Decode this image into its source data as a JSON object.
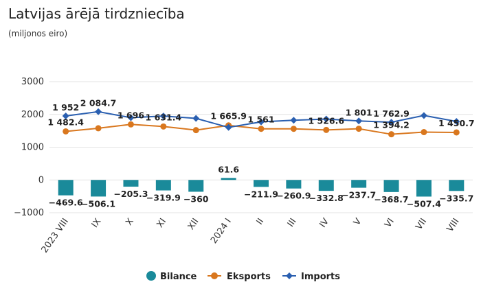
{
  "title": "Latvijas ārējā tirdzniecība",
  "subtitle": "(miljonos eiro)",
  "chart_data": {
    "type": "bar+line",
    "categories": [
      "2023 VIII",
      "IX",
      "X",
      "XI",
      "XII",
      "2024 I",
      "II",
      "III",
      "IV",
      "V",
      "VI",
      "VII",
      "VIII"
    ],
    "ylim": [
      -1000,
      3000
    ],
    "yticks": [
      "3000",
      "2000",
      "1000",
      "0",
      "−1000"
    ],
    "ytick_values": [
      3000,
      2000,
      1000,
      0,
      -1000
    ],
    "grid": true,
    "legend_position": "bottom",
    "series": [
      {
        "name": "Bilance",
        "type": "bar",
        "color": "#1a8a9a",
        "values": [
          -469.6,
          -506.1,
          -205.3,
          -319.9,
          -360,
          61.6,
          -211.9,
          -260.9,
          -332.8,
          -237.7,
          -368.7,
          -507.4,
          -335.7
        ],
        "labels": [
          "−469.6",
          "−506.1",
          "−205.3",
          "−319.9",
          "−360",
          "61.6",
          "−211.9",
          "−260.9",
          "−332.8",
          "−237.7",
          "−368.7",
          "−507.4",
          "−335.7"
        ]
      },
      {
        "name": "Eksports",
        "type": "line",
        "color": "#d9771e",
        "values": [
          1482.4,
          1578,
          1696,
          1631.4,
          1520,
          1665.9,
          1561,
          1561,
          1526.6,
          1563,
          1394.2,
          1460,
          1450.7
        ],
        "labels": [
          "1 482.4",
          "",
          "1 696",
          "1 631.4",
          "",
          "1 665.9",
          "1 561",
          "",
          "1 526.6",
          "",
          "1 394.2",
          "",
          "1 450.7"
        ]
      },
      {
        "name": "Imports",
        "type": "line",
        "color": "#2a5fb0",
        "values": [
          1952,
          2084.7,
          1901,
          1951,
          1880,
          1604,
          1773,
          1822,
          1859,
          1801,
          1762.9,
          1967,
          1786
        ],
        "labels": [
          "1 952",
          "2 084.7",
          "",
          "",
          "",
          "",
          "",
          "",
          "",
          "1 801",
          "1 762.9",
          "",
          ""
        ]
      }
    ]
  }
}
